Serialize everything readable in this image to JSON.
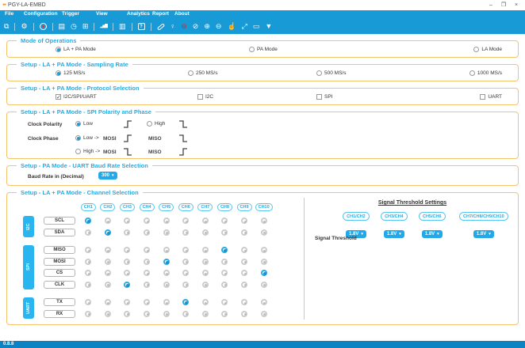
{
  "titlebar": {
    "title": "PGY-LA-EMBD",
    "controls": [
      {
        "name": "minimize-icon",
        "glyph": "–"
      },
      {
        "name": "maximize-icon",
        "glyph": "❐"
      },
      {
        "name": "close-icon",
        "glyph": "×"
      }
    ]
  },
  "menu": {
    "items": [
      "File",
      "Configuration",
      "Trigger",
      "View",
      "Analytics",
      "Report",
      "About"
    ]
  },
  "toolbar": {
    "items": [
      {
        "type": "icon",
        "name": "copy-icon",
        "glyph": "⧉"
      },
      {
        "type": "sep"
      },
      {
        "type": "icon",
        "name": "settings-gear-icon",
        "glyph": "⚙"
      },
      {
        "type": "sep"
      },
      {
        "type": "icon",
        "name": "trigger-icon",
        "glyph": ""
      },
      {
        "type": "sep"
      },
      {
        "type": "icon",
        "name": "notes-icon",
        "glyph": "▤"
      },
      {
        "type": "icon",
        "name": "clock-icon",
        "glyph": "◷"
      },
      {
        "type": "icon",
        "name": "data-format-icon",
        "glyph": "⊞"
      },
      {
        "type": "sep"
      },
      {
        "type": "icon",
        "name": "analytics-chart-icon",
        "glyph": "▂▅▇"
      },
      {
        "type": "sep"
      },
      {
        "type": "icon",
        "name": "report-icon",
        "glyph": "▥"
      },
      {
        "type": "sep"
      },
      {
        "type": "icon",
        "name": "help-icon",
        "glyph": "?"
      },
      {
        "type": "sep"
      },
      {
        "type": "icon",
        "name": "link-icon",
        "glyph": ""
      },
      {
        "type": "icon",
        "name": "pin-icon",
        "glyph": "♀"
      },
      {
        "type": "icon",
        "name": "disconnect-icon",
        "glyph": "⊖",
        "color": "#C62828"
      },
      {
        "type": "icon",
        "name": "globe-icon",
        "glyph": "⊘"
      },
      {
        "type": "icon",
        "name": "zoom-in-icon",
        "glyph": "⊕"
      },
      {
        "type": "icon",
        "name": "zoom-out-icon",
        "glyph": "⊖"
      },
      {
        "type": "icon",
        "name": "hand-pan-icon",
        "glyph": "☝"
      },
      {
        "type": "icon",
        "name": "expand-icon",
        "glyph": "⤢"
      },
      {
        "type": "icon",
        "name": "measure-icon",
        "glyph": "▭"
      },
      {
        "type": "icon",
        "name": "filter-icon",
        "glyph": "▼"
      }
    ]
  },
  "sections": {
    "mode": {
      "title": "Mode of Operations",
      "options": [
        {
          "label": "LA + PA Mode",
          "selected": true
        },
        {
          "label": "PA Mode",
          "selected": false
        },
        {
          "label": "LA Mode",
          "selected": false
        }
      ]
    },
    "sampling": {
      "title": "Setup - LA + PA Mode - Sampling Rate",
      "options": [
        {
          "label": "125 MS/s",
          "selected": true
        },
        {
          "label": "250 MS/s",
          "selected": false
        },
        {
          "label": "500 MS/s",
          "selected": false
        },
        {
          "label": "1000 MS/s",
          "selected": false
        }
      ]
    },
    "protocol": {
      "title": "Setup - LA + PA Mode - Protocol Selection",
      "options": [
        {
          "label": "I2C/SPI/UART",
          "checked": true
        },
        {
          "label": "I2C",
          "checked": false
        },
        {
          "label": "SPI",
          "checked": false
        },
        {
          "label": "UART",
          "checked": false
        }
      ]
    },
    "spi": {
      "title": "Setup - LA + PA Mode - SPI Polarity and Phase",
      "clock_polarity_label": "Clock Polarity",
      "clock_phase_label": "Clock Phase",
      "polarity_options": [
        {
          "label": "Low",
          "selected": true,
          "edge": "rising"
        },
        {
          "label": "High",
          "selected": false,
          "edge": "falling"
        }
      ],
      "phase_options": [
        {
          "label": "Low ->",
          "selected": true,
          "mosi": "MOSI",
          "mosi_edge": "rising",
          "miso": "MISO",
          "miso_edge": "falling"
        },
        {
          "label": "High ->",
          "selected": false,
          "mosi": "MOSI",
          "mosi_edge": "falling",
          "miso": "MISO",
          "miso_edge": "rising"
        }
      ]
    },
    "baud": {
      "title": "Setup - PA Mode - UART Baud Rate Selection",
      "label": "Baud Rate in (Decimal)",
      "value": "300"
    },
    "channel": {
      "title": "Setup - LA + PA Mode - Channel Selection",
      "columns": [
        "CH1",
        "CH2",
        "CH3",
        "CH4",
        "CH5",
        "CH6",
        "CH7",
        "CH8",
        "CH9",
        "CH10"
      ],
      "groups": [
        {
          "name": "I2C",
          "rows": [
            {
              "label": "SCL",
              "selected": "CH1"
            },
            {
              "label": "SDA",
              "selected": "CH2"
            }
          ]
        },
        {
          "name": "SPI",
          "rows": [
            {
              "label": "MISO",
              "selected": "CH8"
            },
            {
              "label": "MOSI",
              "selected": "CH5"
            },
            {
              "label": "CS",
              "selected": "CH10"
            },
            {
              "label": "CLK",
              "selected": "CH3"
            }
          ]
        },
        {
          "name": "UART",
          "rows": [
            {
              "label": "TX",
              "selected": "CH6"
            },
            {
              "label": "RX",
              "selected": null
            }
          ]
        }
      ]
    },
    "threshold": {
      "title": "Signal Threshold Settings",
      "label": "Signal Threshold",
      "groups": [
        {
          "label": "CH1/CH2",
          "value": "1.8V"
        },
        {
          "label": "CH3/CH4",
          "value": "1.8V"
        },
        {
          "label": "CH5/CH6",
          "value": "1.8V"
        },
        {
          "label": "CH7/CH8/CH9/CH10",
          "value": "1.8V"
        }
      ]
    }
  },
  "statusbar": {
    "version": "0.8.8"
  },
  "colors": {
    "toolbar_blue": "#189AD6",
    "accent_cyan": "#29ABE2",
    "section_border": "#F5C46A",
    "selected_blue": "#1E9CD8",
    "status_bar_blue": "#0C84C4",
    "group_label_blue": "#29B5F0"
  }
}
